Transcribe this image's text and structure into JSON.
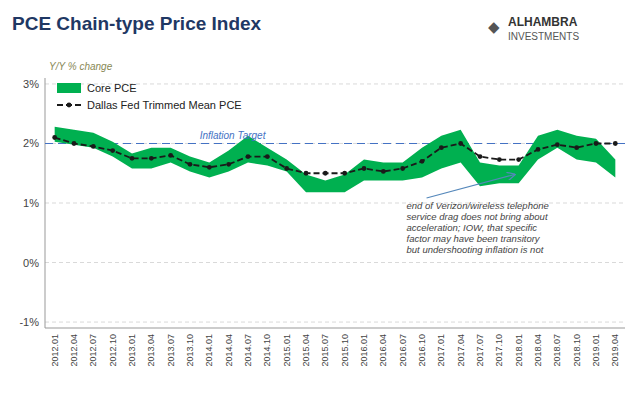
{
  "chart_data": {
    "type": "line",
    "title": "PCE Chain-type Price Index",
    "y_label": "Y/Y % change",
    "annotation": "end of Verizon/wireless telephone\nservice drag does not bring about\nacceleration; IOW, that specific\nfactor may have been transitory\nbut undershooting inflation is not",
    "logo": [
      "◆",
      "ALHAMBRA",
      "INVESTMENTS"
    ],
    "categories": [
      "2012.01",
      "2012.04",
      "2012.07",
      "2012.10",
      "2013.01",
      "2013.04",
      "2013.07",
      "2013.10",
      "2014.01",
      "2014.04",
      "2014.07",
      "2014.10",
      "2015.01",
      "2015.04",
      "2015.07",
      "2015.10",
      "2016.01",
      "2016.04",
      "2016.07",
      "2016.10",
      "2017.01",
      "2017.04",
      "2017.07",
      "2017.10",
      "2018.01",
      "2018.04",
      "2018.07",
      "2018.10",
      "2019.01",
      "2019.04"
    ],
    "series": [
      {
        "name": "Core PCE",
        "type": "band",
        "color": "#00b050",
        "lower": [
          0.0203,
          0.0198,
          0.0193,
          0.0178,
          0.0158,
          0.0158,
          0.0168,
          0.0153,
          0.0143,
          0.0153,
          0.0168,
          0.0163,
          0.0153,
          0.0118,
          0.0118,
          0.0118,
          0.0138,
          0.0138,
          0.0138,
          0.0143,
          0.0158,
          0.0168,
          0.0128,
          0.0133,
          0.0133,
          0.0173,
          0.0193,
          0.0173,
          0.0168,
          0.0143
        ],
        "upper": [
          0.0228,
          0.0223,
          0.0218,
          0.0203,
          0.0183,
          0.0193,
          0.0193,
          0.0178,
          0.0168,
          0.0188,
          0.0213,
          0.0193,
          0.0173,
          0.0148,
          0.0138,
          0.0148,
          0.0173,
          0.0168,
          0.0168,
          0.0193,
          0.0213,
          0.0223,
          0.0168,
          0.0163,
          0.0163,
          0.0213,
          0.0223,
          0.0213,
          0.0208,
          0.0173
        ]
      },
      {
        "name": "Dallas Fed Trimmed Mean PCE",
        "type": "line",
        "color": "#1a1a1a",
        "line_style": "dashed",
        "marker": "circle",
        "values": [
          0.021,
          0.02,
          0.0195,
          0.0188,
          0.0175,
          0.0175,
          0.018,
          0.0165,
          0.016,
          0.0165,
          0.0178,
          0.0178,
          0.0158,
          0.015,
          0.015,
          0.015,
          0.0158,
          0.0153,
          0.0158,
          0.017,
          0.0193,
          0.02,
          0.0178,
          0.0173,
          0.0173,
          0.019,
          0.0198,
          0.0193,
          0.02,
          0.02
        ]
      }
    ],
    "reference_line": {
      "value": 0.02,
      "label": "Inflation Target",
      "color": "#4472c4"
    },
    "ylim": [
      -0.011,
      0.031
    ],
    "yticks": [
      {
        "value": -0.01,
        "label": "-1%"
      },
      {
        "value": 0.0,
        "label": "0%"
      },
      {
        "value": 0.01,
        "label": "1%"
      },
      {
        "value": 0.02,
        "label": "2%"
      },
      {
        "value": 0.03,
        "label": "3%"
      }
    ],
    "grid": true,
    "legend": "upper left"
  }
}
